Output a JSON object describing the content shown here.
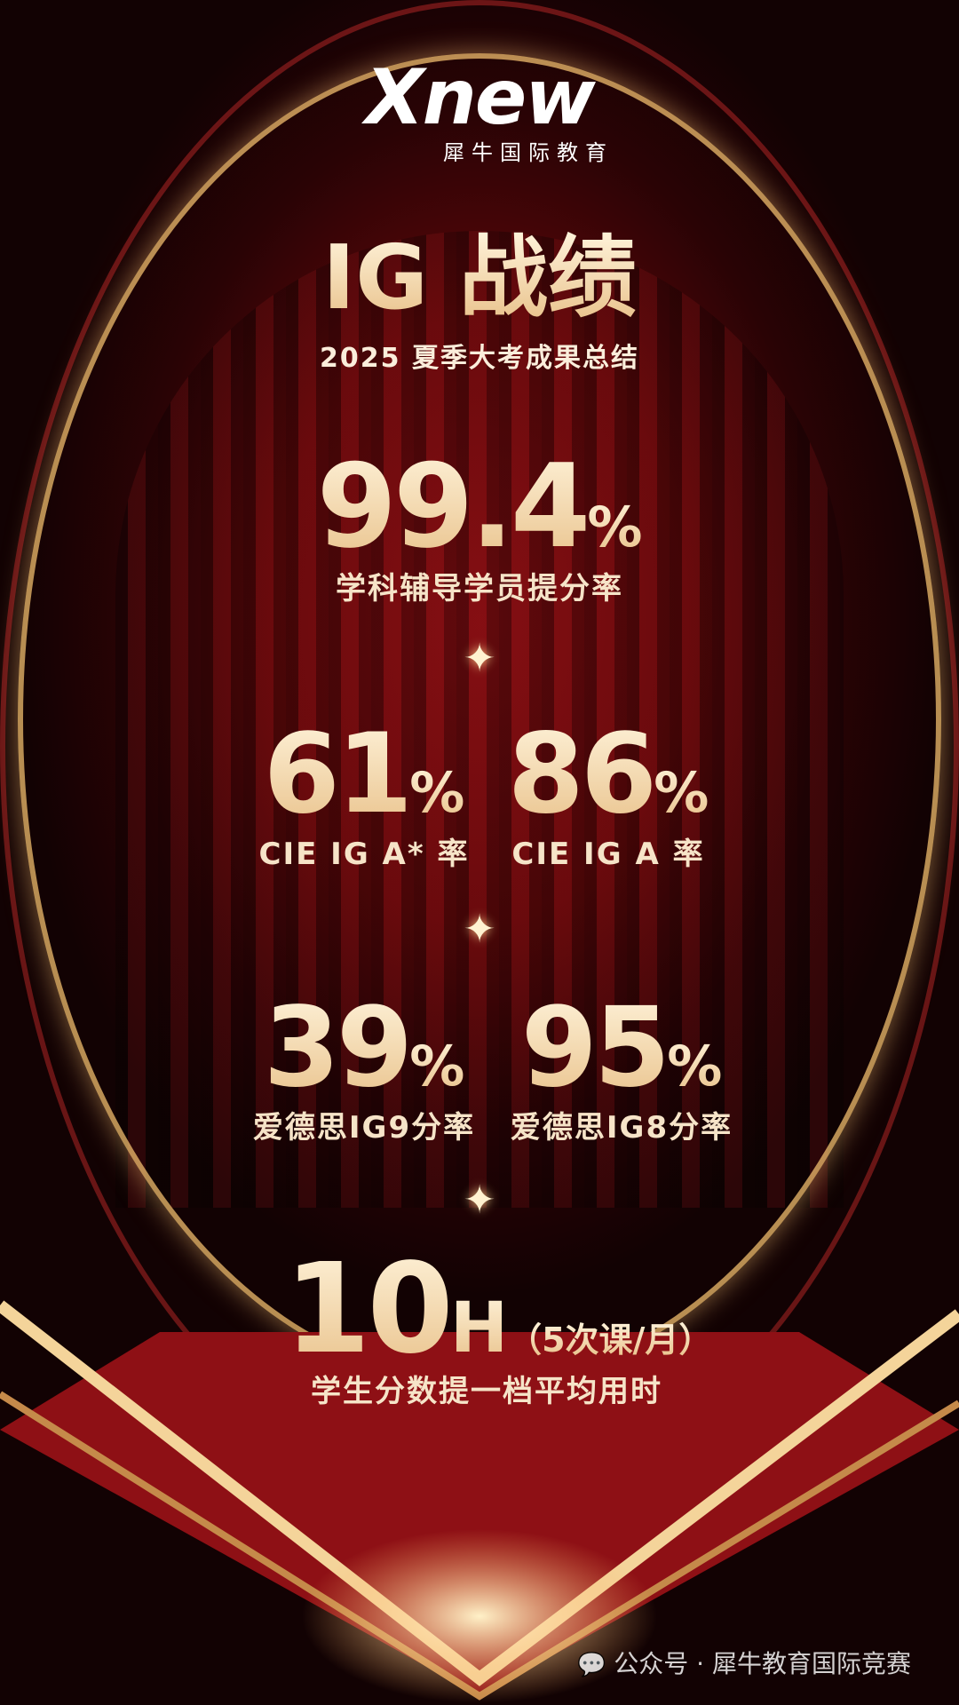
{
  "logo": {
    "brand": "Xnew",
    "subtitle": "犀牛国际教育"
  },
  "title": "IG 战绩",
  "subtitle": "2025 夏季大考成果总结",
  "stats": [
    {
      "value": "99.4",
      "unit": "%",
      "label": "学科辅导学员提分率"
    },
    {
      "value": "61",
      "unit": "%",
      "label": "CIE IG A* 率"
    },
    {
      "value": "86",
      "unit": "%",
      "label": "CIE IG A 率"
    },
    {
      "value": "39",
      "unit": "%",
      "label": "爱德思IG9分率"
    },
    {
      "value": "95",
      "unit": "%",
      "label": "爱德思IG8分率"
    },
    {
      "value": "10",
      "unit": "H",
      "note": "（5次课/月）",
      "label": "学生分数提一档平均用时"
    }
  ],
  "sparkle_icon": "four-point-star",
  "watermark": "公众号 · 犀牛教育国际竞赛",
  "colors": {
    "background": "#5a0709",
    "gold": "#f2d6a8"
  }
}
